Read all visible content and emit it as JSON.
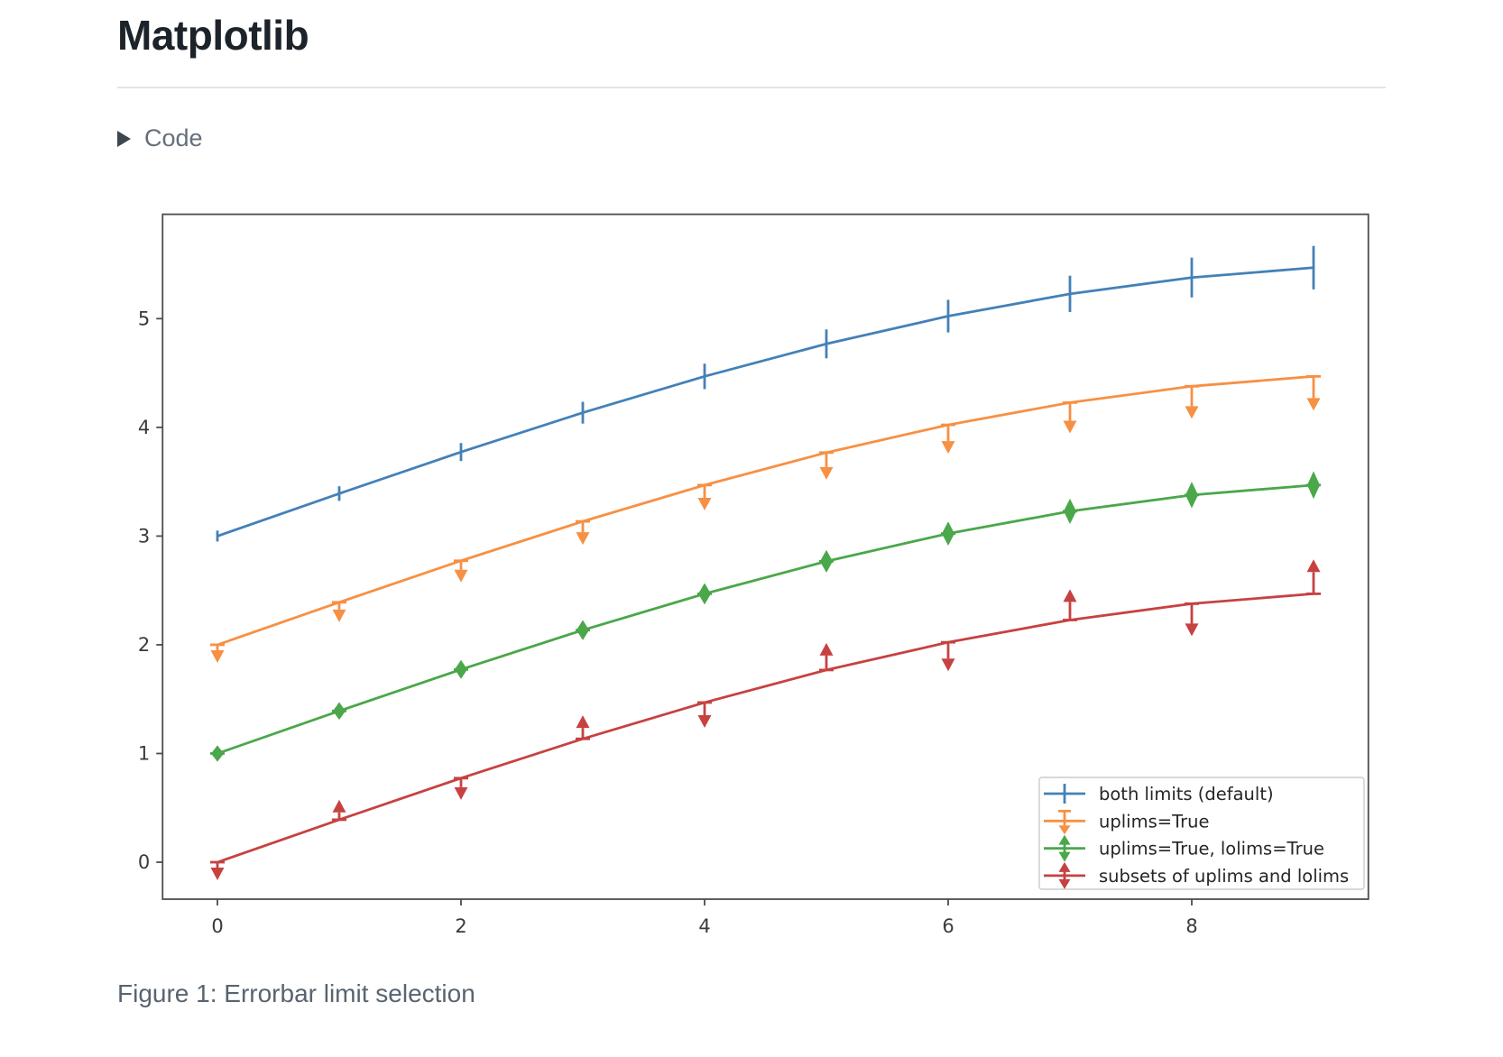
{
  "page": {
    "title": "Matplotlib",
    "code_toggle_label": "Code",
    "figure_caption": "Figure 1: Errorbar limit selection"
  },
  "chart_data": {
    "type": "line",
    "title": "",
    "xlabel": "",
    "ylabel": "",
    "x": [
      0,
      1,
      2,
      3,
      4,
      5,
      6,
      7,
      8,
      9
    ],
    "xticks": [
      0,
      2,
      4,
      6,
      8
    ],
    "yticks": [
      0,
      1,
      2,
      3,
      4,
      5
    ],
    "xlim": [
      -0.45,
      9.45
    ],
    "ylim": [
      -0.34,
      5.96
    ],
    "grid": false,
    "legend_position": "lower right",
    "yerr": [
      0.05,
      0.067,
      0.083,
      0.1,
      0.117,
      0.133,
      0.15,
      0.167,
      0.183,
      0.2
    ],
    "series": [
      {
        "name": "both limits (default)",
        "color": "#4381b8",
        "limits": "both",
        "values": [
          3.0,
          3.391,
          3.773,
          4.135,
          4.469,
          4.768,
          5.023,
          5.228,
          5.378,
          5.469
        ]
      },
      {
        "name": "uplims=True",
        "color": "#f79043",
        "limits": "uplims",
        "values": [
          2.0,
          2.391,
          2.773,
          3.135,
          3.469,
          3.768,
          4.023,
          4.228,
          4.378,
          4.469
        ]
      },
      {
        "name": "uplims=True, lolims=True",
        "color": "#4aa74a",
        "limits": "uplims_lolims",
        "values": [
          1.0,
          1.391,
          1.773,
          2.135,
          2.469,
          2.768,
          3.023,
          3.228,
          3.378,
          3.469
        ]
      },
      {
        "name": "subsets of uplims and lolims",
        "color": "#c64241",
        "limits": "alternating",
        "uplims": [
          true,
          false,
          true,
          false,
          true,
          false,
          true,
          false,
          true,
          false
        ],
        "lolims": [
          false,
          true,
          false,
          true,
          false,
          true,
          false,
          true,
          false,
          true
        ],
        "values": [
          0.0,
          0.391,
          0.773,
          1.135,
          1.469,
          1.768,
          2.023,
          2.228,
          2.378,
          2.469
        ]
      }
    ],
    "axis_color": "#4c4c4c",
    "tick_label_color": "#3b3b3b",
    "legend_text_color": "#262626",
    "legend_border_color": "#cccccc"
  }
}
